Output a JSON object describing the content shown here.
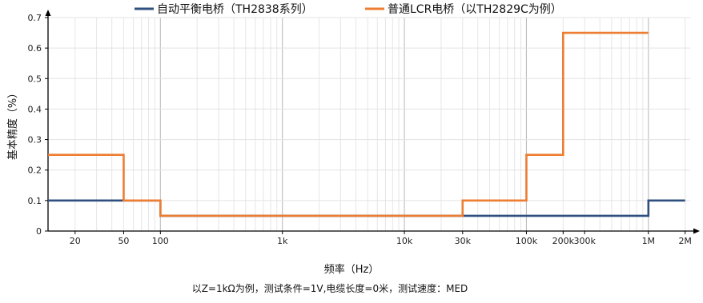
{
  "chart_data": {
    "type": "line",
    "step": "post",
    "xlabel": "频率（Hz）",
    "ylabel": "基本精度（%）",
    "note": "以Z=1kΩ为例，测试条件=1V,电缆长度=0米，测试速度：MED",
    "xscale": "log",
    "xlim": [
      12,
      2200000
    ],
    "ylim": [
      0,
      0.7
    ],
    "x_ticks": [
      {
        "value": 20,
        "label": "20"
      },
      {
        "value": 50,
        "label": "50"
      },
      {
        "value": 100,
        "label": "100"
      },
      {
        "value": 1000,
        "label": "1k"
      },
      {
        "value": 10000,
        "label": "10k"
      },
      {
        "value": 30000,
        "label": "30k"
      },
      {
        "value": 100000,
        "label": "100k"
      },
      {
        "value": 200000,
        "label": "200k"
      },
      {
        "value": 300000,
        "label": "300k"
      },
      {
        "value": 1000000,
        "label": "1M"
      },
      {
        "value": 2000000,
        "label": "2M"
      }
    ],
    "y_ticks": [
      {
        "value": 0,
        "label": "0"
      },
      {
        "value": 0.1,
        "label": "0.1"
      },
      {
        "value": 0.2,
        "label": "0.2"
      },
      {
        "value": 0.3,
        "label": "0.3"
      },
      {
        "value": 0.4,
        "label": "0.4"
      },
      {
        "value": 0.5,
        "label": "0.5"
      },
      {
        "value": 0.6,
        "label": "0.6"
      },
      {
        "value": 0.7,
        "label": "0.7"
      }
    ],
    "grid": true,
    "legend_position": "top",
    "series": [
      {
        "name": "自动平衡电桥（TH2838系列）",
        "color": "#2f4f7f",
        "x": [
          12,
          100,
          30000,
          1000000,
          2000000
        ],
        "y": [
          0.1,
          0.05,
          0.05,
          0.1,
          0.1
        ]
      },
      {
        "name": "普通LCR电桥（以TH2829C为例）",
        "color": "#ed7d31",
        "x": [
          12,
          50,
          100,
          30000,
          100000,
          200000,
          1000000
        ],
        "y": [
          0.25,
          0.1,
          0.05,
          0.1,
          0.25,
          0.65,
          0.65
        ]
      }
    ]
  }
}
